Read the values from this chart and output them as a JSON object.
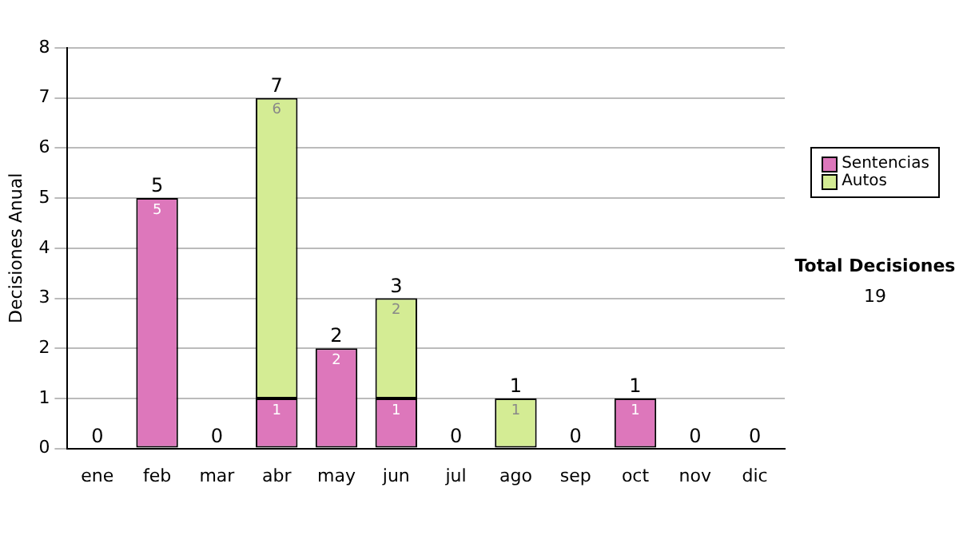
{
  "chart_data": {
    "type": "bar",
    "ylabel": "Decisiones Anual",
    "categories": [
      "ene",
      "feb",
      "mar",
      "abr",
      "may",
      "jun",
      "jul",
      "ago",
      "sep",
      "oct",
      "nov",
      "dic"
    ],
    "stacked": true,
    "series": [
      {
        "name": "Sentencias",
        "color": "#dd77bb",
        "values": [
          0,
          5,
          0,
          1,
          2,
          1,
          0,
          0,
          0,
          1,
          0,
          0
        ],
        "value_labels": [
          null,
          "5",
          null,
          "1",
          "2",
          "1",
          null,
          null,
          null,
          "1",
          null,
          null
        ]
      },
      {
        "name": "Autos",
        "color": "#d4ec94",
        "values": [
          0,
          0,
          0,
          6,
          0,
          2,
          0,
          1,
          0,
          0,
          0,
          0
        ],
        "value_labels": [
          null,
          null,
          null,
          "6",
          null,
          "2",
          null,
          "1",
          null,
          null,
          null,
          null
        ]
      }
    ],
    "totals": [
      "0",
      "5",
      "0",
      "7",
      "2",
      "3",
      "0",
      "1",
      "0",
      "1",
      "0",
      "0"
    ],
    "ylim": [
      0,
      8
    ],
    "yticks": [
      0,
      1,
      2,
      3,
      4,
      5,
      6,
      7,
      8
    ],
    "grid": "y",
    "legend": "right",
    "annotations": [
      "Total Decisiones",
      "19"
    ]
  }
}
